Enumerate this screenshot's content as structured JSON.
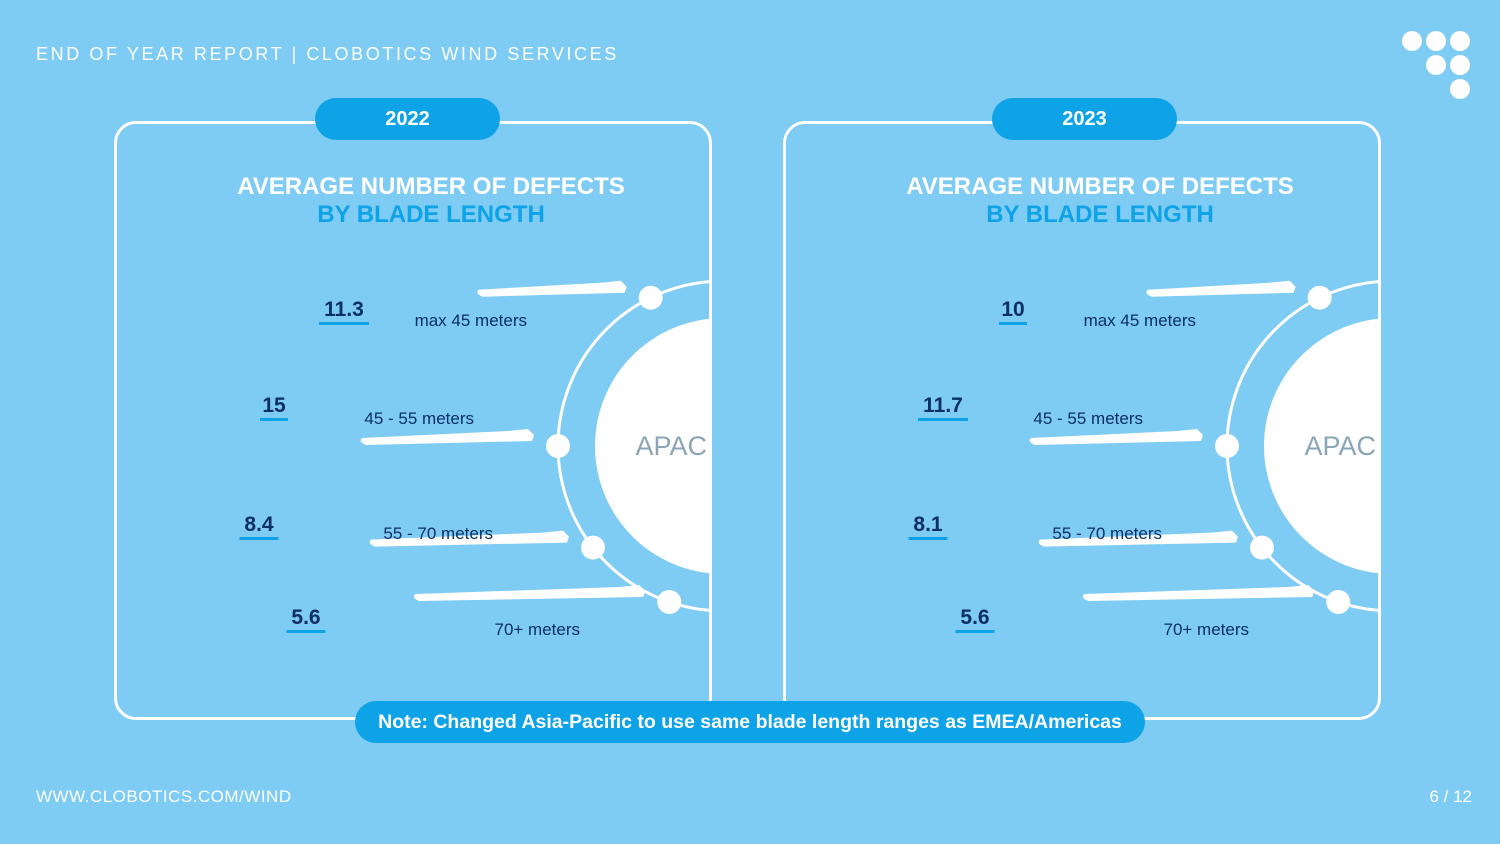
{
  "header": {
    "title": "END OF YEAR REPORT | CLOBOTICS WIND SERVICES"
  },
  "footer": {
    "url": "WWW.CLOBOTICS.COM/WIND",
    "page": "6 / 12"
  },
  "note": "Note: Changed Asia-Pacific to use same blade length ranges as EMEA/Americas",
  "colors": {
    "background": "#7ecbf3",
    "accent": "#0ea2e6",
    "value_text": "#0b2f66",
    "white": "#ffffff"
  },
  "chart_data": [
    {
      "type": "table",
      "year": "2022",
      "title": "AVERAGE NUMBER OF DEFECTS",
      "subtitle": "BY BLADE LENGTH",
      "region": "APAC",
      "categories": [
        "max 45 meters",
        "45 - 55 meters",
        "55 - 70 meters",
        "70+ meters"
      ],
      "values": [
        11.3,
        15,
        8.4,
        5.6
      ],
      "value_labels": [
        "11.3",
        "15",
        "8.4",
        "5.6"
      ]
    },
    {
      "type": "table",
      "year": "2023",
      "title": "AVERAGE NUMBER OF DEFECTS",
      "subtitle": "BY BLADE LENGTH",
      "region": "APAC",
      "categories": [
        "max 45 meters",
        "45 - 55 meters",
        "55 - 70 meters",
        "70+ meters"
      ],
      "values": [
        10,
        11.7,
        8.1,
        5.6
      ],
      "value_labels": [
        "10",
        "11.7",
        "8.1",
        "5.6"
      ]
    }
  ]
}
